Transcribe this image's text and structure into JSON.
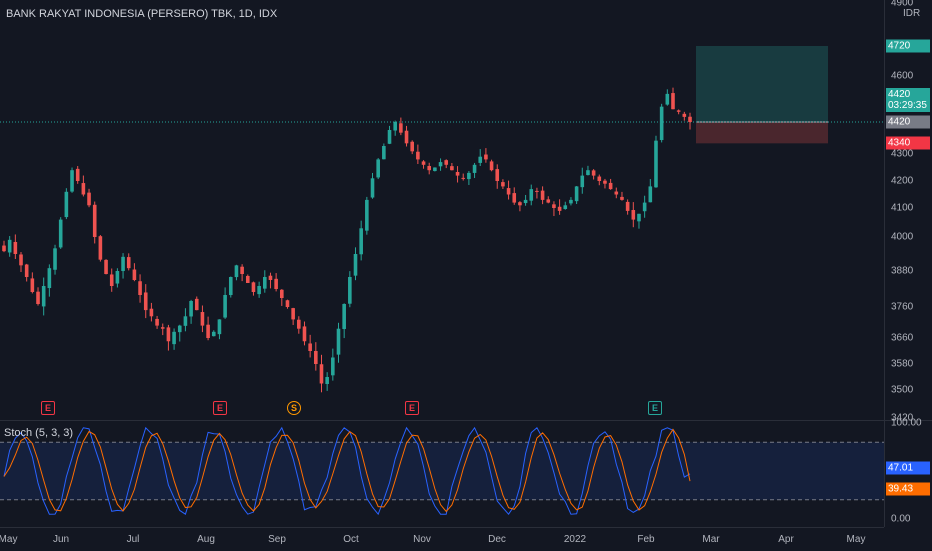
{
  "header": {
    "symbol_title": "BANK RAKYAT INDONESIA (PERSERO) TBK, 1D, IDX"
  },
  "price_axis": {
    "currency": "IDR",
    "ticks": [
      {
        "label": "4900",
        "value": 4900
      },
      {
        "label": "4720",
        "value": 4720
      },
      {
        "label": "4600",
        "value": 4600
      },
      {
        "label": "4420",
        "value": 4420
      },
      {
        "label": "4300",
        "value": 4300
      },
      {
        "label": "4200",
        "value": 4200
      },
      {
        "label": "4100",
        "value": 4100
      },
      {
        "label": "4000",
        "value": 4000
      },
      {
        "label": "3880",
        "value": 3880
      },
      {
        "label": "3760",
        "value": 3760
      },
      {
        "label": "3660",
        "value": 3660
      },
      {
        "label": "3580",
        "value": 3580
      },
      {
        "label": "3500",
        "value": 3500
      },
      {
        "label": "3420",
        "value": 3420
      }
    ],
    "tags": {
      "target": {
        "label": "4720",
        "value": 4720,
        "color": "#26a69a"
      },
      "current": {
        "label": "4420",
        "value": 4420,
        "color": "#26a69a"
      },
      "timer": {
        "label": "03:29:35"
      },
      "entry": {
        "label": "4420",
        "value": 4420,
        "color": "#787b86"
      },
      "stop": {
        "label": "4340",
        "value": 4340,
        "color": "#f23645"
      }
    }
  },
  "time_axis": {
    "ticks": [
      "May",
      "Jun",
      "Jul",
      "Aug",
      "Sep",
      "Oct",
      "Nov",
      "Dec",
      "2022",
      "Feb",
      "Mar",
      "Apr",
      "May"
    ]
  },
  "events": [
    {
      "glyph": "E",
      "color": "#f23645"
    },
    {
      "glyph": "E",
      "color": "#f23645"
    },
    {
      "glyph": "S",
      "color": "#ff9800"
    },
    {
      "glyph": "E",
      "color": "#f23645"
    },
    {
      "glyph": "E",
      "color": "#26a69a"
    }
  ],
  "stochastic": {
    "title": "Stoch (5, 3, 3)",
    "k_value": "47.01",
    "d_value": "39.43",
    "k_color": "#2962ff",
    "d_color": "#ff6d00",
    "axis_ticks": [
      {
        "label": "100.00",
        "value": 100
      },
      {
        "label": "0.00",
        "value": 0
      }
    ],
    "upper_band": 80,
    "lower_band": 20
  },
  "colors": {
    "up": "#26a69a",
    "down": "#ef5350",
    "background": "#131722"
  },
  "chart_data": {
    "type": "candlestick",
    "title": "BANK RAKYAT INDONESIA (PERSERO) TBK, 1D, IDX",
    "ylim": [
      3420,
      4960
    ],
    "x": [
      "May 2021",
      "Jun 2021",
      "Jul 2021",
      "Aug 2021",
      "Sep 2021",
      "Oct 2021",
      "Nov 2021",
      "Dec 2021",
      "Jan 2022",
      "Feb 2022"
    ],
    "close_path": [
      3950,
      3990,
      3940,
      3900,
      3860,
      3810,
      3770,
      3830,
      3890,
      3960,
      4060,
      4160,
      4240,
      4200,
      4150,
      4110,
      4000,
      3920,
      3870,
      3830,
      3880,
      3930,
      3890,
      3850,
      3800,
      3750,
      3730,
      3700,
      3690,
      3650,
      3680,
      3700,
      3730,
      3780,
      3750,
      3700,
      3660,
      3680,
      3720,
      3800,
      3860,
      3900,
      3870,
      3840,
      3810,
      3830,
      3860,
      3850,
      3820,
      3790,
      3760,
      3720,
      3690,
      3650,
      3620,
      3580,
      3520,
      3540,
      3600,
      3690,
      3770,
      3860,
      3940,
      4030,
      4130,
      4210,
      4280,
      4330,
      4390,
      4420,
      4380,
      4340,
      4310,
      4280,
      4260,
      4240,
      4250,
      4270,
      4260,
      4240,
      4220,
      4210,
      4230,
      4260,
      4290,
      4280,
      4240,
      4200,
      4180,
      4150,
      4120,
      4110,
      4130,
      4170,
      4160,
      4130,
      4120,
      4100,
      4090,
      4110,
      4130,
      4180,
      4220,
      4240,
      4220,
      4200,
      4190,
      4170,
      4150,
      4130,
      4090,
      4060,
      4080,
      4120,
      4180,
      4350,
      4480,
      4530,
      4470,
      4460,
      4440,
      4420
    ],
    "position_tool": {
      "entry": 4420,
      "target": 4720,
      "stop": 4340
    },
    "stochastic_k_last": 47.01,
    "stochastic_d_last": 39.43
  }
}
